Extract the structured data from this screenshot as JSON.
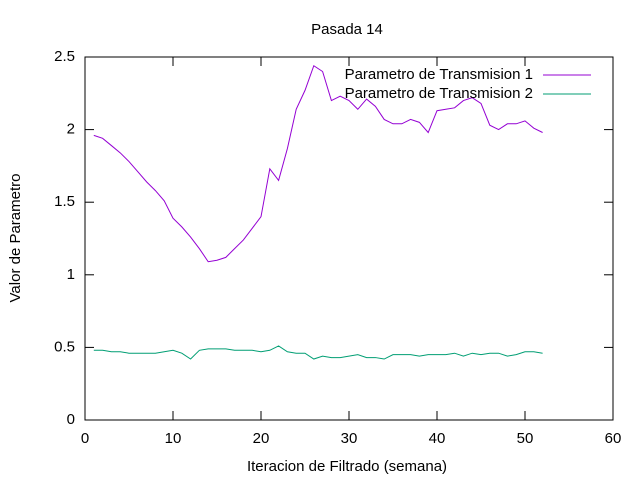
{
  "chart_data": {
    "type": "line",
    "title": "Pasada 14",
    "xlabel": "Iteracion de Filtrado (semana)",
    "ylabel": "Valor de Parametro",
    "x": [
      1,
      2,
      3,
      4,
      5,
      6,
      7,
      8,
      9,
      10,
      11,
      12,
      13,
      14,
      15,
      16,
      17,
      18,
      19,
      20,
      21,
      22,
      23,
      24,
      25,
      26,
      27,
      28,
      29,
      30,
      31,
      32,
      33,
      34,
      35,
      36,
      37,
      38,
      39,
      40,
      41,
      42,
      43,
      44,
      45,
      46,
      47,
      48,
      49,
      50,
      51,
      52
    ],
    "series": [
      {
        "name": "Parametro de Transmision 1",
        "color": "#9400d3",
        "values": [
          1.96,
          1.94,
          1.89,
          1.84,
          1.78,
          1.71,
          1.64,
          1.58,
          1.51,
          1.39,
          1.33,
          1.26,
          1.18,
          1.09,
          1.1,
          1.12,
          1.18,
          1.24,
          1.32,
          1.4,
          1.73,
          1.65,
          1.87,
          2.14,
          2.27,
          2.44,
          2.4,
          2.2,
          2.23,
          2.2,
          2.14,
          2.21,
          2.16,
          2.07,
          2.04,
          2.04,
          2.07,
          2.05,
          1.98,
          2.13,
          2.14,
          2.15,
          2.2,
          2.22,
          2.18,
          2.03,
          2.0,
          2.04,
          2.04,
          2.06,
          2.01,
          1.98
        ]
      },
      {
        "name": "Parametro de Transmision 2",
        "color": "#009e73",
        "values": [
          0.48,
          0.48,
          0.47,
          0.47,
          0.46,
          0.46,
          0.46,
          0.46,
          0.47,
          0.48,
          0.46,
          0.42,
          0.48,
          0.49,
          0.49,
          0.49,
          0.48,
          0.48,
          0.48,
          0.47,
          0.48,
          0.51,
          0.47,
          0.46,
          0.46,
          0.42,
          0.44,
          0.43,
          0.43,
          0.44,
          0.45,
          0.43,
          0.43,
          0.42,
          0.45,
          0.45,
          0.45,
          0.44,
          0.45,
          0.45,
          0.45,
          0.46,
          0.44,
          0.46,
          0.45,
          0.46,
          0.46,
          0.44,
          0.45,
          0.47,
          0.47,
          0.46
        ]
      }
    ],
    "xlim": [
      0,
      60
    ],
    "xticks": [
      0,
      10,
      20,
      30,
      40,
      50,
      60
    ],
    "ylim": [
      0,
      2.5
    ],
    "yticks": [
      0,
      0.5,
      1,
      1.5,
      2,
      2.5
    ],
    "legend": "top-right"
  }
}
